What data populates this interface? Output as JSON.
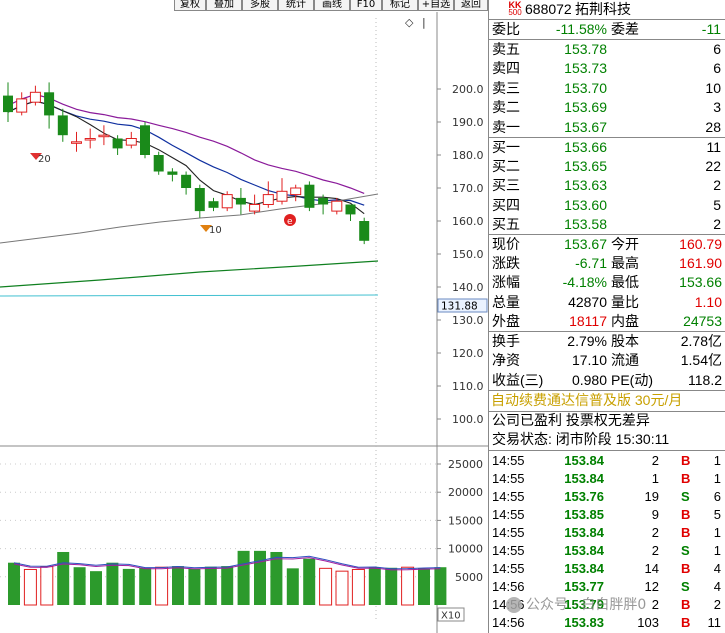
{
  "toolbar": {
    "buttons": [
      "复权",
      "叠加",
      "多股",
      "统计",
      "画线",
      "F10",
      "标记",
      "+自选",
      "返回"
    ]
  },
  "chart": {
    "price_axis": [
      "200.0",
      "190.0",
      "180.0",
      "170.0",
      "160.0",
      "150.0",
      "140.0",
      "130.0",
      "120.0",
      "110.0",
      "100.0"
    ],
    "price_highlight": "131.88",
    "volume_axis": [
      "25000",
      "20000",
      "15000",
      "10000",
      "5000"
    ],
    "volume_unit": "X10",
    "annotation_20": "20",
    "annotation_10": "10",
    "diamond_marker": "◇"
  },
  "chart_data": {
    "type": "candlestick",
    "ylim": [
      100,
      205
    ],
    "candles": [
      {
        "o": 198,
        "c": 193,
        "h": 202,
        "l": 190
      },
      {
        "o": 193,
        "c": 197,
        "h": 199,
        "l": 192
      },
      {
        "o": 196,
        "c": 199,
        "h": 201,
        "l": 195
      },
      {
        "o": 199,
        "c": 192,
        "h": 202,
        "l": 188
      },
      {
        "o": 192,
        "c": 186,
        "h": 194,
        "l": 184
      },
      {
        "o": 184,
        "c": 184,
        "h": 187,
        "l": 181
      },
      {
        "o": 185,
        "c": 185,
        "h": 188,
        "l": 182
      },
      {
        "o": 186,
        "c": 186,
        "h": 189,
        "l": 183
      },
      {
        "o": 185,
        "c": 182,
        "h": 186,
        "l": 180
      },
      {
        "o": 183,
        "c": 185,
        "h": 187,
        "l": 182
      },
      {
        "o": 189,
        "c": 180,
        "h": 190,
        "l": 179
      },
      {
        "o": 180,
        "c": 175,
        "h": 181,
        "l": 174
      },
      {
        "o": 175,
        "c": 174,
        "h": 176,
        "l": 172
      },
      {
        "o": 174,
        "c": 170,
        "h": 175,
        "l": 168
      },
      {
        "o": 170,
        "c": 163,
        "h": 171,
        "l": 161
      },
      {
        "o": 166,
        "c": 164,
        "h": 167,
        "l": 163
      },
      {
        "o": 164,
        "c": 168,
        "h": 169,
        "l": 163
      },
      {
        "o": 167,
        "c": 165,
        "h": 170,
        "l": 162
      },
      {
        "o": 163,
        "c": 165,
        "h": 168,
        "l": 162
      },
      {
        "o": 165,
        "c": 168,
        "h": 172,
        "l": 164
      },
      {
        "o": 166,
        "c": 169,
        "h": 173,
        "l": 165
      },
      {
        "o": 168,
        "c": 170,
        "h": 171,
        "l": 166
      },
      {
        "o": 171,
        "c": 164,
        "h": 172,
        "l": 163
      },
      {
        "o": 167,
        "c": 165,
        "h": 168,
        "l": 162
      },
      {
        "o": 163,
        "c": 166,
        "h": 167,
        "l": 162
      },
      {
        "o": 165,
        "c": 162,
        "h": 165,
        "l": 160
      },
      {
        "o": 160,
        "c": 154,
        "h": 161,
        "l": 153
      }
    ],
    "volumes": [
      7500,
      6300,
      6800,
      9400,
      6700,
      6000,
      7500,
      6400,
      6600,
      6700,
      6900,
      6400,
      6800,
      6900,
      9600,
      9600,
      9400,
      6500,
      8200,
      6500,
      6000,
      6300,
      6700,
      6600,
      6700,
      6500,
      6700
    ],
    "volume_ylim": [
      0,
      29000
    ],
    "volume_up": [
      false,
      true,
      true,
      false,
      false,
      false,
      false,
      false,
      false,
      true,
      false,
      false,
      false,
      false,
      false,
      false,
      false,
      false,
      false,
      true,
      true,
      true,
      false,
      false,
      true,
      false,
      false
    ]
  },
  "panel": {
    "logo_top": "KK",
    "logo_bottom": "500",
    "code": "688072",
    "name": "拓荆科技",
    "weibi_label": "委比",
    "weibi_value": "-11.58%",
    "weicha_label": "委差",
    "weicha_value": "-11",
    "sell": [
      {
        "label": "卖五",
        "price": "153.78",
        "vol": "6"
      },
      {
        "label": "卖四",
        "price": "153.73",
        "vol": "6"
      },
      {
        "label": "卖三",
        "price": "153.70",
        "vol": "10"
      },
      {
        "label": "卖二",
        "price": "153.69",
        "vol": "3"
      },
      {
        "label": "卖一",
        "price": "153.67",
        "vol": "28"
      }
    ],
    "buy": [
      {
        "label": "买一",
        "price": "153.66",
        "vol": "11"
      },
      {
        "label": "买二",
        "price": "153.65",
        "vol": "22"
      },
      {
        "label": "买三",
        "price": "153.63",
        "vol": "2"
      },
      {
        "label": "买四",
        "price": "153.60",
        "vol": "5"
      },
      {
        "label": "买五",
        "price": "153.58",
        "vol": "2"
      }
    ],
    "quote": [
      {
        "l1": "现价",
        "v1": "153.67",
        "c1": "green",
        "l2": "今开",
        "v2": "160.79",
        "c2": "red"
      },
      {
        "l1": "涨跌",
        "v1": "-6.71",
        "c1": "green",
        "l2": "最高",
        "v2": "161.90",
        "c2": "red"
      },
      {
        "l1": "涨幅",
        "v1": "-4.18%",
        "c1": "green",
        "l2": "最低",
        "v2": "153.66",
        "c2": "green"
      },
      {
        "l1": "总量",
        "v1": "42870",
        "c1": "blk",
        "l2": "量比",
        "v2": "1.10",
        "c2": "red"
      },
      {
        "l1": "外盘",
        "v1": "18117",
        "c1": "red",
        "l2": "内盘",
        "v2": "24753",
        "c2": "green"
      }
    ],
    "fin": [
      {
        "l1": "换手",
        "v1": "2.79%",
        "l2": "股本",
        "v2": "2.78亿"
      },
      {
        "l1": "净资",
        "v1": "17.10",
        "l2": "流通",
        "v2": "1.54亿"
      },
      {
        "l1": "收益(三)",
        "v1": "0.980",
        "l2": "PE(动)",
        "v2": "118.2"
      }
    ],
    "promo": "自动续费通达信普及版  30元/月",
    "note": "公司已盈利 投票权无差异",
    "status": "交易状态: 闭市阶段 15:30:11",
    "trades": [
      {
        "t": "14:55",
        "p": "153.84",
        "v": "2",
        "s": "B",
        "n": "1"
      },
      {
        "t": "14:55",
        "p": "153.84",
        "v": "1",
        "s": "B",
        "n": "1"
      },
      {
        "t": "14:55",
        "p": "153.76",
        "v": "19",
        "s": "S",
        "n": "6"
      },
      {
        "t": "14:55",
        "p": "153.85",
        "v": "9",
        "s": "B",
        "n": "5"
      },
      {
        "t": "14:55",
        "p": "153.84",
        "v": "2",
        "s": "B",
        "n": "1"
      },
      {
        "t": "14:55",
        "p": "153.84",
        "v": "2",
        "s": "S",
        "n": "1"
      },
      {
        "t": "14:55",
        "p": "153.84",
        "v": "14",
        "s": "B",
        "n": "4"
      },
      {
        "t": "14:56",
        "p": "153.77",
        "v": "12",
        "s": "S",
        "n": "4"
      },
      {
        "t": "14:56",
        "p": "153.79",
        "v": "2",
        "s": "B",
        "n": "2"
      },
      {
        "t": "14:56",
        "p": "153.83",
        "v": "103",
        "s": "B",
        "n": "11"
      }
    ]
  },
  "watermark": "公众号 · 白白胖胖0"
}
